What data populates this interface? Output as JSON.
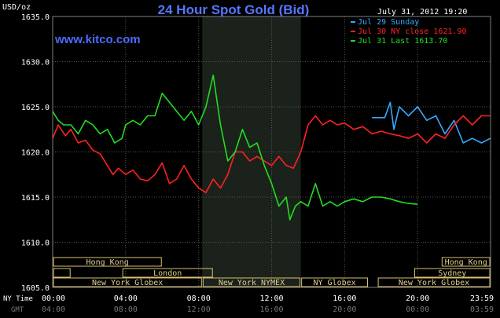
{
  "chart_data": {
    "type": "line",
    "title": "24 Hour Spot Gold (Bid)",
    "unit_label": "USD/oz",
    "date_label": "July 31, 2012 19:20",
    "watermark": "www.kitco.com",
    "ylim": [
      1605,
      1635
    ],
    "yticks": [
      "1635.0",
      "1630.0",
      "1625.0",
      "1620.0",
      "1615.0",
      "1610.0",
      "1605.0"
    ],
    "x_hours": [
      0,
      24
    ],
    "x_row1_label": "NY Time",
    "x_row2_label": "GMT",
    "x_ny_ticks": [
      "00:00",
      "04:00",
      "08:00",
      "12:00",
      "16:00",
      "20:00",
      "23:59"
    ],
    "x_gmt_ticks": [
      "04:00",
      "08:00",
      "12:00",
      "16:00",
      "20:00",
      "00:00",
      "03:59"
    ],
    "shaded_range": [
      8.2,
      13.6
    ],
    "legend": [
      {
        "label": "Jul 29 Sunday",
        "color": "#33aaff"
      },
      {
        "label": "Jul 30 NY close 1621.90",
        "color": "#ff2222"
      },
      {
        "label": "Jul 31 Last 1613.70",
        "color": "#22dd22"
      }
    ],
    "series": [
      {
        "name": "Jul 29 Sunday",
        "color": "#33aaff",
        "x": [
          17.5,
          18.2,
          18.5,
          18.7,
          19.0,
          19.5,
          20.0,
          20.5,
          21.0,
          21.5,
          22.0,
          22.5,
          23.0,
          23.5,
          23.99
        ],
        "y": [
          1623.8,
          1623.8,
          1625.5,
          1622.5,
          1625.0,
          1624.0,
          1625.0,
          1623.5,
          1624.0,
          1622.0,
          1623.5,
          1621.0,
          1621.5,
          1621.0,
          1621.5
        ]
      },
      {
        "name": "Jul 30 NY close 1621.90",
        "color": "#ff2222",
        "x": [
          0.0,
          0.3,
          0.7,
          1.0,
          1.4,
          1.8,
          2.2,
          2.6,
          3.0,
          3.3,
          3.6,
          4.0,
          4.4,
          4.8,
          5.2,
          5.6,
          6.0,
          6.4,
          6.8,
          7.2,
          7.6,
          8.0,
          8.4,
          8.8,
          9.2,
          9.6,
          10.0,
          10.4,
          10.8,
          11.2,
          11.6,
          12.0,
          12.4,
          12.8,
          13.2,
          13.6,
          14.0,
          14.4,
          14.8,
          15.2,
          15.6,
          16.0,
          16.5,
          17.0,
          17.5,
          18.0,
          18.5,
          19.0,
          19.5,
          20.0,
          20.5,
          21.0,
          21.5,
          22.0,
          22.5,
          23.0,
          23.5,
          23.99
        ],
        "y": [
          1621.5,
          1623.0,
          1621.8,
          1622.5,
          1621.0,
          1621.3,
          1620.2,
          1619.8,
          1618.5,
          1617.5,
          1618.2,
          1617.5,
          1618.0,
          1617.0,
          1616.8,
          1617.5,
          1618.8,
          1616.5,
          1617.0,
          1618.5,
          1617.0,
          1616.0,
          1615.5,
          1617.0,
          1616.0,
          1617.5,
          1620.0,
          1620.0,
          1619.0,
          1619.5,
          1619.0,
          1618.5,
          1619.5,
          1618.5,
          1618.2,
          1620.0,
          1623.0,
          1624.0,
          1623.0,
          1623.5,
          1623.0,
          1623.2,
          1622.5,
          1622.8,
          1622.0,
          1622.3,
          1622.0,
          1621.8,
          1621.5,
          1622.0,
          1621.0,
          1622.0,
          1621.5,
          1623.0,
          1624.0,
          1623.0,
          1624.0,
          1624.0
        ]
      },
      {
        "name": "Jul 31 Last 1613.70",
        "color": "#22dd22",
        "x": [
          0.0,
          0.3,
          0.6,
          1.0,
          1.4,
          1.8,
          2.2,
          2.6,
          3.0,
          3.4,
          3.8,
          4.0,
          4.4,
          4.8,
          5.2,
          5.6,
          6.0,
          6.4,
          6.8,
          7.2,
          7.6,
          8.0,
          8.4,
          8.8,
          9.2,
          9.6,
          10.0,
          10.4,
          10.8,
          11.2,
          11.6,
          12.0,
          12.4,
          12.8,
          13.0,
          13.3,
          13.6,
          14.0,
          14.4,
          14.8,
          15.2,
          15.6,
          16.0,
          16.5,
          17.0,
          17.5,
          18.0,
          18.5,
          19.0,
          19.5,
          20.0
        ],
        "y": [
          1624.5,
          1623.5,
          1623.0,
          1623.0,
          1622.0,
          1623.5,
          1623.0,
          1622.0,
          1622.5,
          1621.0,
          1621.5,
          1623.0,
          1623.5,
          1623.0,
          1624.0,
          1624.0,
          1626.5,
          1625.5,
          1624.5,
          1623.5,
          1624.5,
          1623.0,
          1625.0,
          1628.5,
          1623.0,
          1619.0,
          1620.0,
          1622.5,
          1620.5,
          1621.0,
          1618.5,
          1616.5,
          1614.0,
          1615.0,
          1612.5,
          1614.0,
          1614.5,
          1614.0,
          1616.5,
          1614.0,
          1614.5,
          1614.0,
          1614.5,
          1614.8,
          1614.5,
          1615.0,
          1615.0,
          1614.8,
          1614.5,
          1614.3,
          1614.2
        ]
      }
    ],
    "session_rows": [
      [
        {
          "label": "Hong Kong",
          "start": 0.0,
          "end": 6.0
        },
        {
          "label": "Hong Kong",
          "start": 21.3,
          "end": 24.0
        }
      ],
      [
        {
          "label": "",
          "start": 0.0,
          "end": 1.0
        },
        {
          "label": "London",
          "start": 3.8,
          "end": 8.8
        },
        {
          "label": "Sydney",
          "start": 19.8,
          "end": 24.0
        }
      ],
      [
        {
          "label": "New York Globex",
          "start": 0.0,
          "end": 8.2
        },
        {
          "label": "New York NYMEX",
          "start": 8.2,
          "end": 13.6
        },
        {
          "label": "NY Globex",
          "start": 13.6,
          "end": 17.3
        },
        {
          "label": "New York Globex",
          "start": 17.8,
          "end": 24.0
        }
      ]
    ]
  }
}
